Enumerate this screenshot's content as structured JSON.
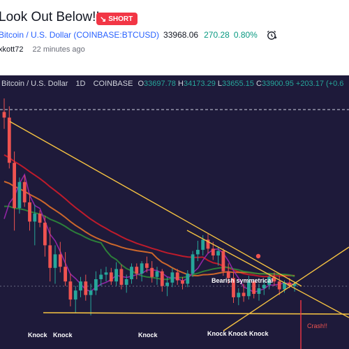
{
  "post": {
    "title": "Look Out Below!!",
    "badge": "SHORT",
    "symbol_name": "Bitcoin / U.S. Dollar (COINBASE:BTCUSD)",
    "price": "33968.06",
    "change": "270.28",
    "change_pct": "0.80%",
    "author": "xkott72",
    "time_ago": "22 minutes ago"
  },
  "legend": {
    "symbol": "Bitcoin / U.S. Dollar",
    "interval": "1D",
    "exchange": "COINBASE",
    "o_label": "O",
    "o": "33697.78",
    "h_label": "H",
    "h": "34173.29",
    "l_label": "L",
    "l": "33655.15",
    "c_label": "C",
    "c": "33900.95",
    "chg": "+203.17 (+0.6"
  },
  "annotations": {
    "pattern": "Bearish symmetrical",
    "crash": "Crash!!",
    "knock": "Knock",
    "knock_triple": "Knock Knock Knock"
  },
  "colors": {
    "short_red": "#f23645",
    "symbol_blue": "#2962ff",
    "up_green": "#089981",
    "chart_bg": "#1e1a3a",
    "candle_up": "#26a69a",
    "candle_down": "#ef5350",
    "trendline": "#f5c242",
    "ma_orange": "#e0702a",
    "ma_red": "#d01c2a",
    "ma_green": "#2e8b3a",
    "ma_purple": "#9c27b0"
  },
  "chart_data": {
    "type": "candlestick",
    "candles": [
      [
        0,
        41000,
        42200,
        39500,
        40500
      ],
      [
        1,
        40500,
        41500,
        36000,
        36500
      ],
      [
        2,
        36500,
        37500,
        30500,
        32500
      ],
      [
        3,
        32500,
        35200,
        32000,
        34800
      ],
      [
        4,
        34800,
        35400,
        32600,
        33000
      ],
      [
        5,
        33000,
        33800,
        30500,
        31300
      ],
      [
        6,
        31300,
        32800,
        29200,
        32000
      ],
      [
        7,
        32000,
        32300,
        30800,
        31200
      ],
      [
        8,
        31200,
        31800,
        28200,
        29200
      ],
      [
        9,
        29200,
        30800,
        26000,
        27200
      ],
      [
        10,
        27200,
        29200,
        25800,
        28400
      ],
      [
        11,
        28400,
        29500,
        26800,
        27300
      ],
      [
        12,
        27300,
        28600,
        25600,
        26000
      ],
      [
        13,
        26000,
        26700,
        23800,
        24400
      ],
      [
        14,
        24400,
        25600,
        23200,
        25200
      ],
      [
        15,
        25200,
        26400,
        24600,
        26000
      ],
      [
        16,
        26000,
        26600,
        24300,
        24800
      ],
      [
        17,
        24800,
        25800,
        23000,
        25200
      ],
      [
        18,
        25200,
        26900,
        24800,
        26200
      ],
      [
        19,
        26200,
        27100,
        25600,
        26600
      ],
      [
        20,
        26600,
        27300,
        26000,
        26800
      ],
      [
        21,
        26800,
        27200,
        25700,
        26000
      ],
      [
        22,
        26000,
        27700,
        25600,
        27100
      ],
      [
        23,
        27100,
        27500,
        25300,
        25700
      ],
      [
        24,
        25700,
        26600,
        25000,
        26200
      ],
      [
        25,
        26200,
        27600,
        25800,
        27300
      ],
      [
        26,
        27300,
        27600,
        26200,
        26700
      ],
      [
        27,
        26700,
        27800,
        26000,
        27600
      ],
      [
        28,
        27600,
        28200,
        26800,
        27200
      ],
      [
        29,
        27200,
        27800,
        25900,
        26400
      ],
      [
        30,
        26400,
        27300,
        25700,
        26900
      ],
      [
        31,
        26900,
        27100,
        25100,
        25600
      ],
      [
        32,
        25600,
        26400,
        24700,
        25900
      ],
      [
        33,
        25900,
        27200,
        25500,
        26800
      ],
      [
        34,
        26800,
        27100,
        25700,
        26100
      ],
      [
        35,
        26100,
        26400,
        25300,
        25800
      ],
      [
        36,
        25800,
        27000,
        25500,
        26700
      ],
      [
        37,
        26700,
        28700,
        26400,
        28400
      ],
      [
        38,
        28400,
        29600,
        27800,
        28800
      ],
      [
        39,
        28800,
        30100,
        28300,
        29700
      ],
      [
        40,
        29700,
        30200,
        28500,
        28900
      ],
      [
        41,
        28900,
        29500,
        27900,
        28300
      ],
      [
        42,
        28300,
        29100,
        27400,
        28700
      ],
      [
        43,
        28700,
        28900,
        26500,
        26900
      ],
      [
        44,
        26900,
        27600,
        25800,
        26300
      ],
      [
        45,
        26300,
        26800,
        24100,
        24600
      ],
      [
        46,
        24600,
        25400,
        23900,
        25000
      ],
      [
        47,
        25000,
        25800,
        24200,
        24700
      ],
      [
        48,
        24700,
        26500,
        24400,
        26000
      ],
      [
        49,
        26000,
        26200,
        24500,
        24900
      ],
      [
        50,
        24900,
        25800,
        24300,
        25400
      ],
      [
        51,
        25400,
        26100,
        24800,
        25700
      ],
      [
        52,
        25700,
        26700,
        25300,
        26400
      ],
      [
        53,
        26400,
        26800,
        25600,
        26000
      ],
      [
        54,
        26000,
        26500,
        24800,
        25300
      ],
      [
        55,
        25300,
        26100,
        25000,
        25900
      ],
      [
        56,
        25900,
        26300,
        25400,
        25600
      ],
      [
        57,
        25600,
        26000,
        25100,
        25800
      ]
    ],
    "moving_averages": [
      "orange",
      "red",
      "green",
      "purple"
    ],
    "annotations": [
      "Knock",
      "Knock",
      "Knock",
      "Knock Knock Knock",
      "Bearish symmetrical",
      "Crash!!"
    ]
  }
}
